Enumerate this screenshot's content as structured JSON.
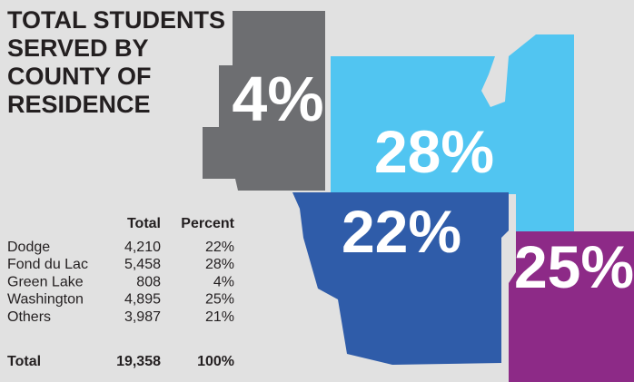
{
  "title_lines": [
    "TOTAL STUDENTS",
    "SERVED BY",
    "COUNTY OF",
    "RESIDENCE"
  ],
  "map": {
    "regions": [
      {
        "label": "4%",
        "color": "#6d6e71"
      },
      {
        "label": "28%",
        "color": "#51c5f1"
      },
      {
        "label": "22%",
        "color": "#2f5ca9"
      },
      {
        "label": "25%",
        "color": "#8d2a87"
      }
    ]
  },
  "table": {
    "header": [
      "Total",
      "Percent"
    ],
    "rows": [
      [
        "Dodge",
        "4,210",
        "22%"
      ],
      [
        "Fond du Lac",
        "5,458",
        "28%"
      ],
      [
        "Green Lake",
        "808",
        "4%"
      ],
      [
        "Washington",
        "4,895",
        "25%"
      ],
      [
        "Others",
        "3,987",
        "21%"
      ]
    ],
    "total": [
      "Total",
      "19,358",
      "100%"
    ]
  }
}
